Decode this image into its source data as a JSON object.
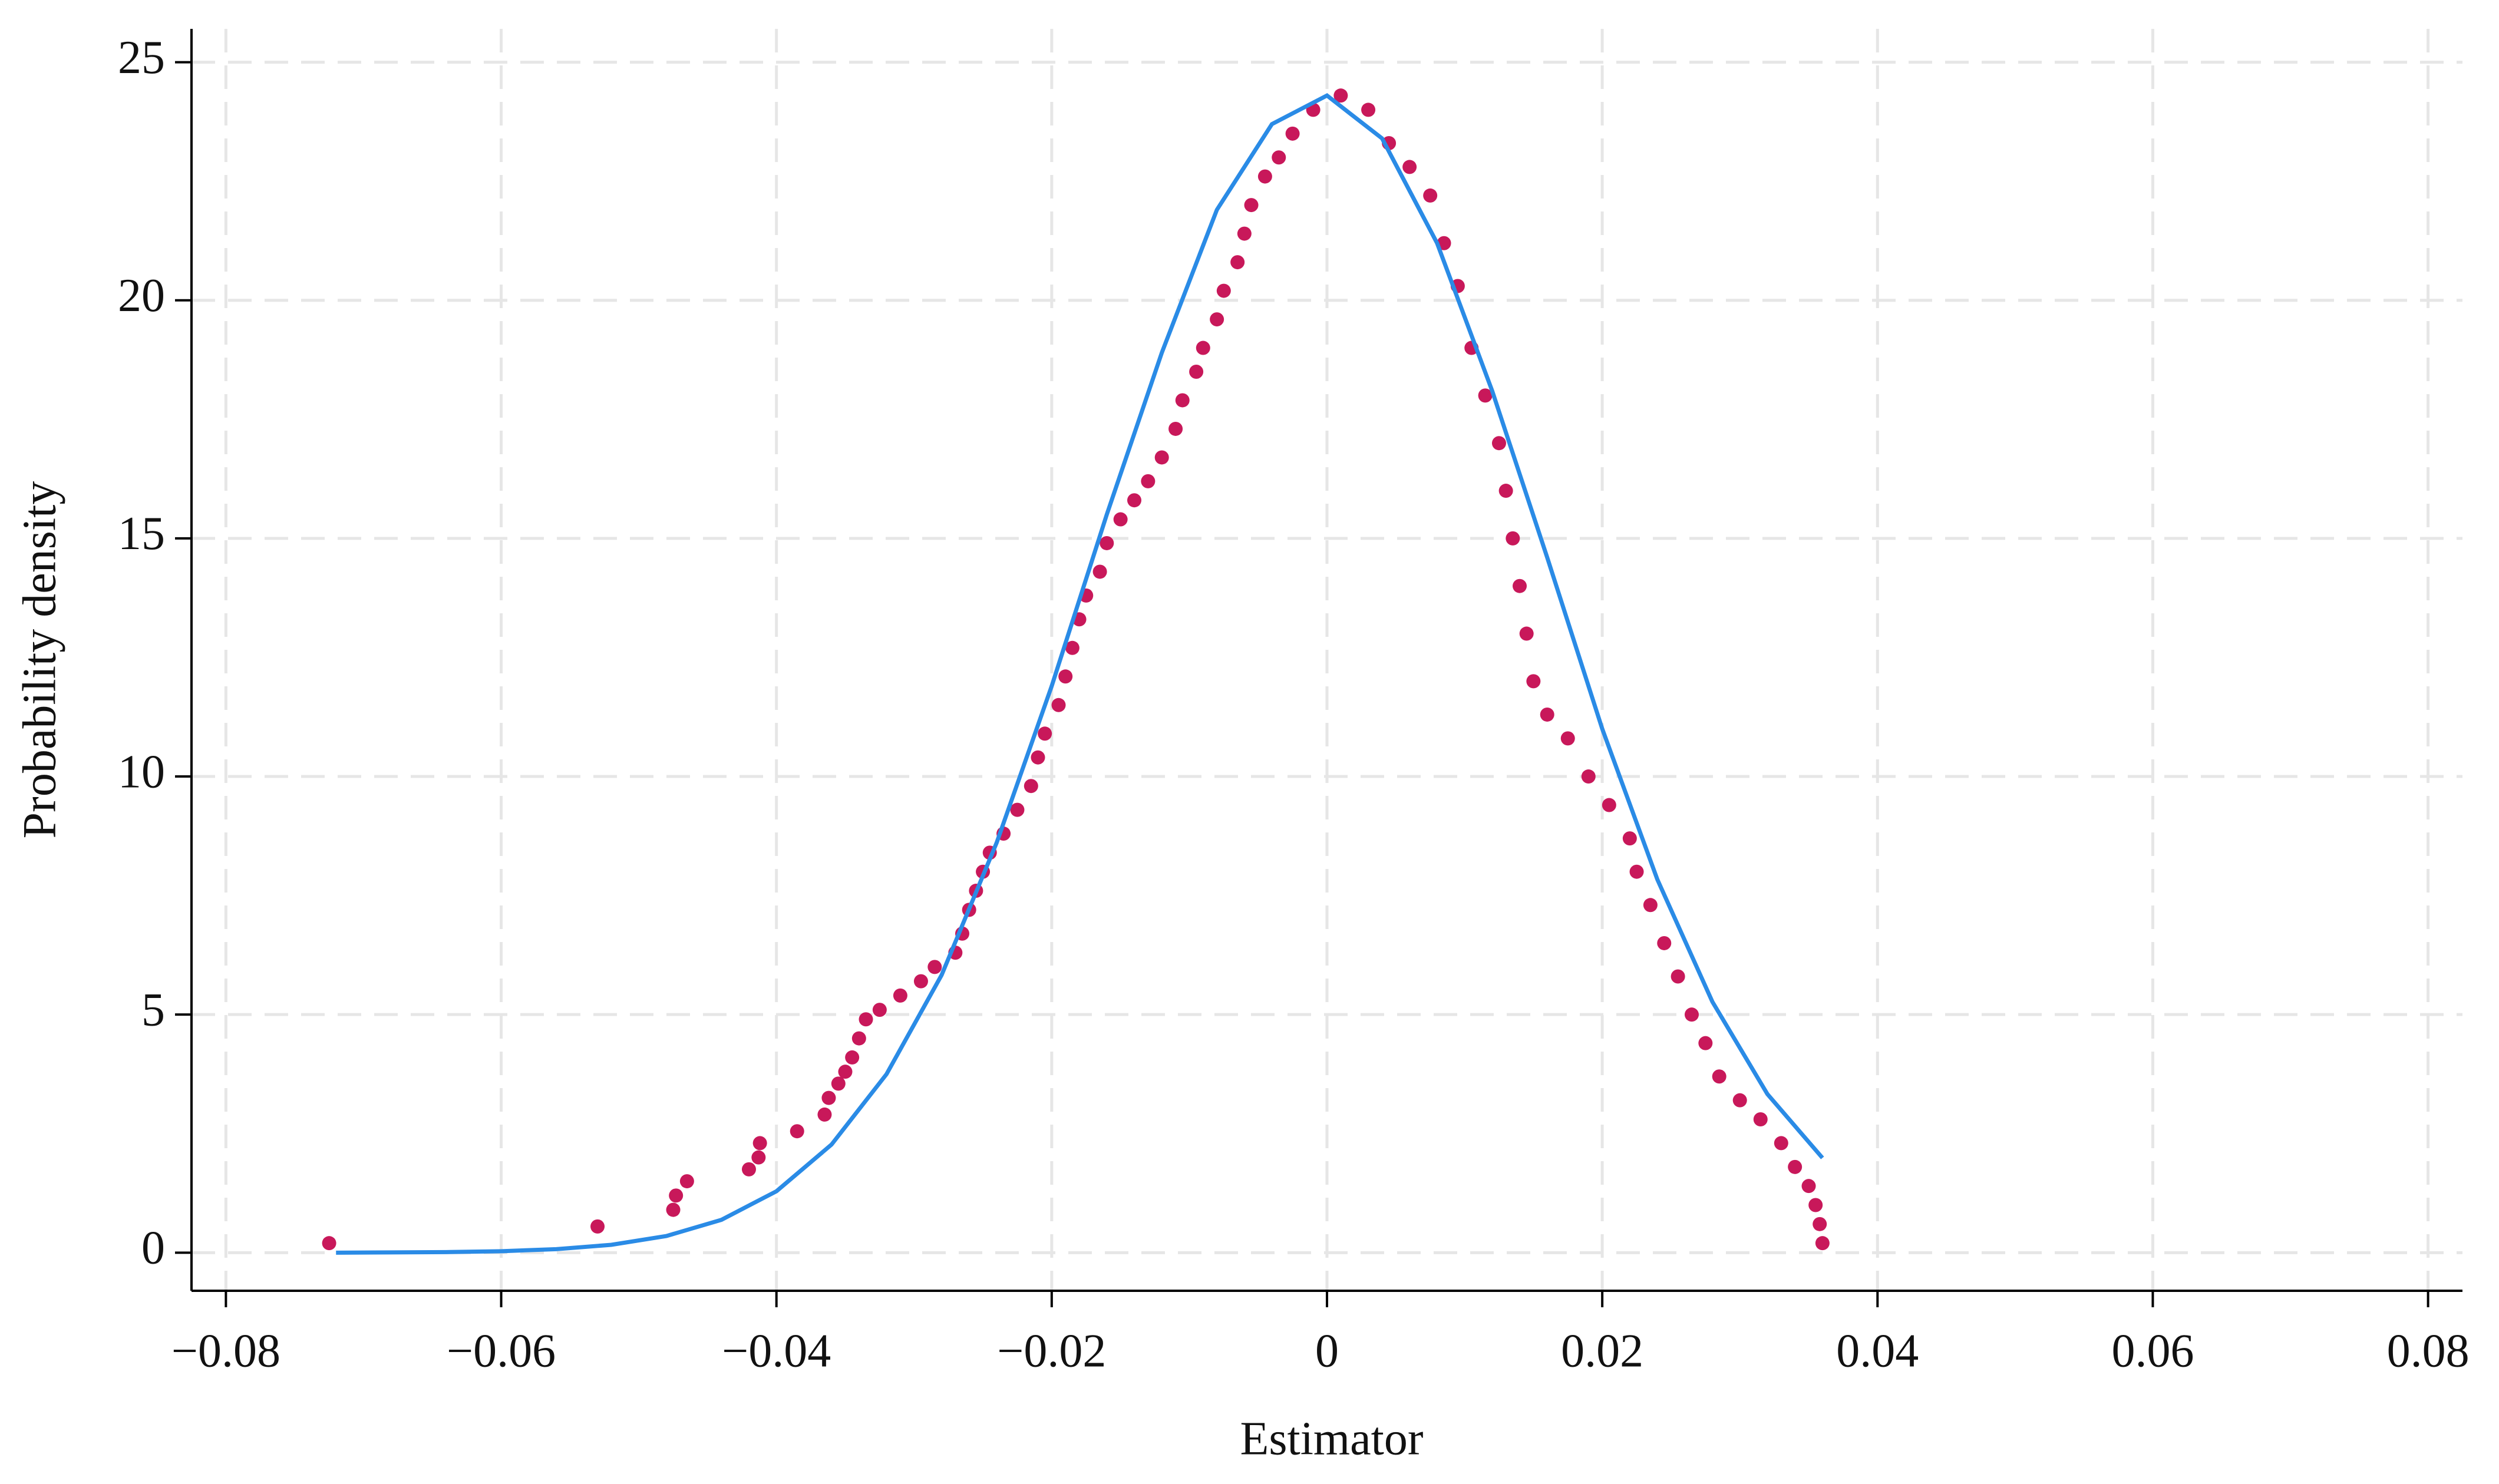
{
  "chart_data": {
    "type": "scatter",
    "xlabel": "Estimator",
    "ylabel": "Probability density",
    "xlim": [
      -0.0825,
      0.0825
    ],
    "ylim": [
      -0.8,
      25.7
    ],
    "xticks": [
      {
        "value": -0.08,
        "label": "−0.08"
      },
      {
        "value": -0.06,
        "label": "−0.06"
      },
      {
        "value": -0.04,
        "label": "−0.04"
      },
      {
        "value": -0.02,
        "label": "−0.02"
      },
      0,
      0.02,
      0.04,
      0.06,
      0.08
    ],
    "yticks": [
      0,
      5,
      10,
      15,
      20,
      25
    ],
    "grid": true,
    "series": [
      {
        "type": "scatter",
        "color": "#c8185a",
        "x": [
          -0.0725,
          -0.053,
          -0.0475,
          -0.0473,
          -0.0465,
          -0.042,
          -0.0413,
          -0.0412,
          -0.0385,
          -0.0365,
          -0.0362,
          -0.0355,
          -0.035,
          -0.0345,
          -0.034,
          -0.0335,
          -0.0325,
          -0.031,
          -0.0295,
          -0.0285,
          -0.027,
          -0.0265,
          -0.026,
          -0.0255,
          -0.025,
          -0.0245,
          -0.0235,
          -0.0225,
          -0.0215,
          -0.021,
          -0.0205,
          -0.0195,
          -0.019,
          -0.0185,
          -0.018,
          -0.0175,
          -0.0165,
          -0.016,
          -0.015,
          -0.014,
          -0.013,
          -0.012,
          -0.011,
          -0.0105,
          -0.0095,
          -0.009,
          -0.008,
          -0.0075,
          -0.0065,
          -0.006,
          -0.0055,
          -0.0045,
          -0.0035,
          -0.0025,
          -0.001,
          0.001,
          0.003,
          0.0045,
          0.006,
          0.0075,
          0.0085,
          0.0095,
          0.0105,
          0.0115,
          0.0125,
          0.013,
          0.0135,
          0.014,
          0.0145,
          0.015,
          0.016,
          0.0175,
          0.019,
          0.0205,
          0.022,
          0.0225,
          0.0235,
          0.0245,
          0.0255,
          0.0265,
          0.0275,
          0.0285,
          0.03,
          0.0315,
          0.033,
          0.034,
          0.035,
          0.0355,
          0.0358,
          0.036
        ],
        "values": [
          0.2,
          0.55,
          0.9,
          1.2,
          1.5,
          1.75,
          2.0,
          2.3,
          2.55,
          2.9,
          3.25,
          3.55,
          3.8,
          4.1,
          4.5,
          4.9,
          5.1,
          5.4,
          5.7,
          6.0,
          6.3,
          6.7,
          7.2,
          7.6,
          8.0,
          8.4,
          8.8,
          9.3,
          9.8,
          10.4,
          10.9,
          11.5,
          12.1,
          12.7,
          13.3,
          13.8,
          14.3,
          14.9,
          15.4,
          15.8,
          16.2,
          16.7,
          17.3,
          17.9,
          18.5,
          19.0,
          19.6,
          20.2,
          20.8,
          21.4,
          22.0,
          22.6,
          23.0,
          23.5,
          24.0,
          24.3,
          24.0,
          23.3,
          22.8,
          22.2,
          21.2,
          20.3,
          19.0,
          18.0,
          17.0,
          16.0,
          15.0,
          14.0,
          13.0,
          12.0,
          11.3,
          10.8,
          10.0,
          9.4,
          8.7,
          8.0,
          7.3,
          6.5,
          5.8,
          5.0,
          4.4,
          3.7,
          3.2,
          2.8,
          2.3,
          1.8,
          1.4,
          1.0,
          0.6,
          0.2
        ]
      },
      {
        "type": "line",
        "color": "#2a8be6",
        "x": [
          -0.072,
          -0.068,
          -0.064,
          -0.06,
          -0.056,
          -0.052,
          -0.048,
          -0.044,
          -0.04,
          -0.036,
          -0.032,
          -0.028,
          -0.024,
          -0.02,
          -0.016,
          -0.012,
          -0.008,
          -0.004,
          0,
          0.004,
          0.008,
          0.012,
          0.016,
          0.02,
          0.024,
          0.028,
          0.032,
          0.036
        ],
        "values": [
          0.0,
          0.005,
          0.012,
          0.031,
          0.074,
          0.165,
          0.35,
          0.69,
          1.29,
          2.27,
          3.75,
          5.83,
          8.61,
          11.9,
          15.5,
          18.9,
          21.9,
          23.7,
          24.3,
          23.4,
          21.2,
          18.1,
          14.6,
          11.0,
          7.84,
          5.27,
          3.33,
          1.99
        ]
      }
    ]
  }
}
